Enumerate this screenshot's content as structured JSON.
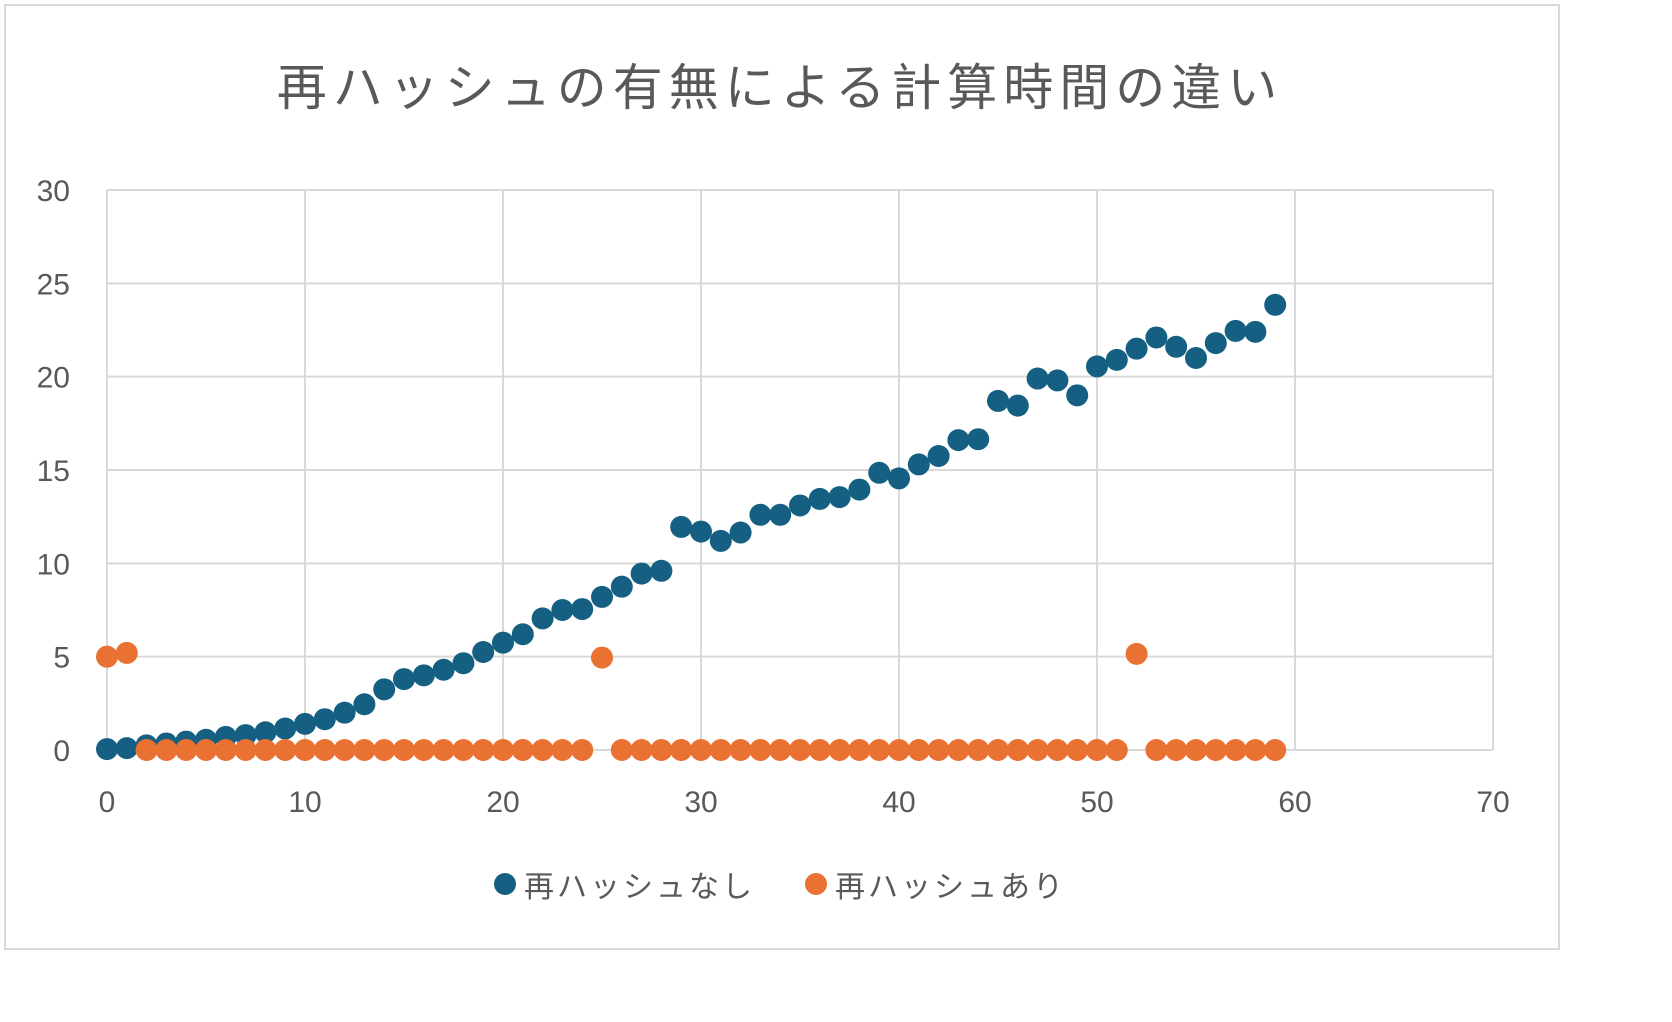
{
  "chart_data": {
    "type": "scatter",
    "title": "再ハッシュの有無による計算時間の違い",
    "xlabel": "",
    "ylabel": "",
    "xlim": [
      0,
      70
    ],
    "ylim": [
      0,
      30
    ],
    "xticks": [
      0,
      10,
      20,
      30,
      40,
      50,
      60,
      70
    ],
    "yticks": [
      0,
      5,
      10,
      15,
      20,
      25,
      30
    ],
    "grid": true,
    "legend_position": "bottom",
    "series": [
      {
        "name": "再ハッシュなし",
        "color": "#156082",
        "x": [
          0,
          1,
          2,
          3,
          4,
          5,
          6,
          7,
          8,
          9,
          10,
          11,
          12,
          13,
          14,
          15,
          16,
          17,
          18,
          19,
          20,
          21,
          22,
          23,
          24,
          25,
          26,
          27,
          28,
          29,
          30,
          31,
          32,
          33,
          34,
          35,
          36,
          37,
          38,
          39,
          40,
          41,
          42,
          43,
          44,
          45,
          46,
          47,
          48,
          49,
          50,
          51,
          52,
          53,
          54,
          55,
          56,
          57,
          58,
          59
        ],
        "y": [
          0.05,
          0.1,
          0.25,
          0.35,
          0.45,
          0.55,
          0.7,
          0.8,
          0.95,
          1.15,
          1.4,
          1.65,
          2.0,
          2.45,
          3.25,
          3.8,
          4.0,
          4.3,
          4.65,
          5.25,
          5.75,
          6.2,
          7.05,
          7.5,
          7.55,
          8.2,
          8.75,
          9.45,
          9.6,
          11.95,
          11.7,
          11.2,
          11.65,
          12.6,
          12.6,
          13.1,
          13.45,
          13.55,
          13.95,
          14.85,
          14.55,
          15.3,
          15.75,
          16.6,
          16.65,
          18.7,
          18.45,
          19.9,
          19.8,
          19.0,
          20.55,
          20.9,
          21.5,
          22.1,
          21.6,
          21.0,
          21.8,
          22.45,
          22.4,
          23.85
        ]
      },
      {
        "name": "再ハッシュあり",
        "color": "#E97132",
        "x": [
          0,
          1,
          2,
          3,
          4,
          5,
          6,
          7,
          8,
          9,
          10,
          11,
          12,
          13,
          14,
          15,
          16,
          17,
          18,
          19,
          20,
          21,
          22,
          23,
          24,
          25,
          26,
          27,
          28,
          29,
          30,
          31,
          32,
          33,
          34,
          35,
          36,
          37,
          38,
          39,
          40,
          41,
          42,
          43,
          44,
          45,
          46,
          47,
          48,
          49,
          50,
          51,
          52,
          53,
          54,
          55,
          56,
          57,
          58,
          59
        ],
        "y": [
          5.0,
          5.2,
          0,
          0,
          0,
          0,
          0,
          0,
          0,
          0,
          0,
          0,
          0,
          0,
          0,
          0,
          0,
          0,
          0,
          0,
          0,
          0,
          0,
          0,
          0,
          4.95,
          0,
          0,
          0,
          0,
          0,
          0,
          0,
          0,
          0,
          0,
          0,
          0,
          0,
          0,
          0,
          0,
          0,
          0,
          0,
          0,
          0,
          0,
          0,
          0,
          0,
          0,
          5.15,
          0,
          0,
          0,
          0,
          0,
          0,
          0
        ]
      }
    ]
  }
}
